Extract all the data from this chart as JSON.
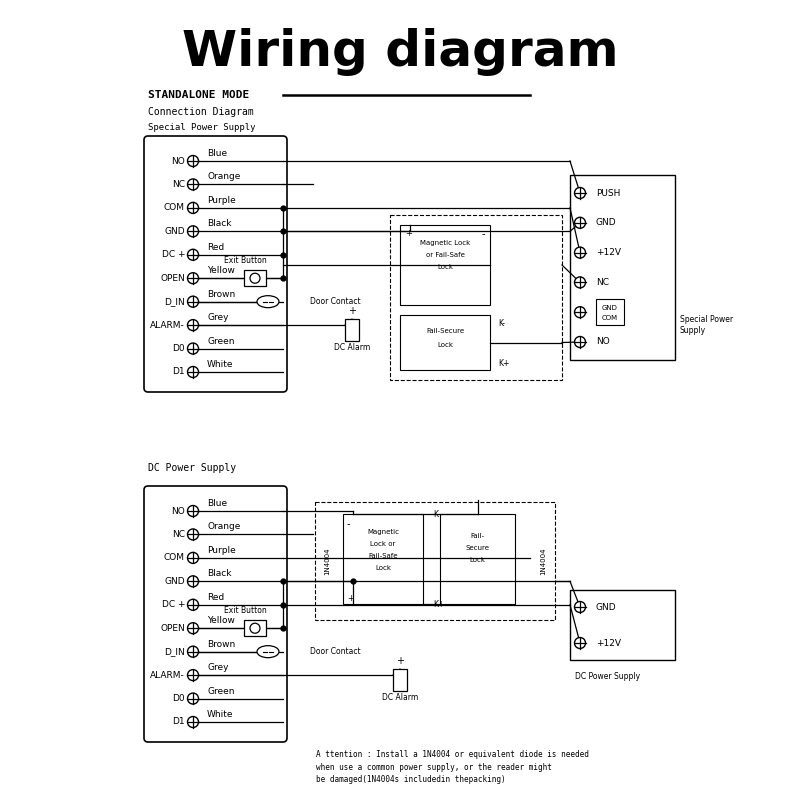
{
  "title": "Wiring diagram",
  "title_fontsize": 36,
  "bg_color": "#ffffff",
  "line_color": "#000000",
  "section1_label": "STANDALONE MODE",
  "section1_sub1": "Connection Diagram",
  "section1_sub2": "Special Power Supply",
  "section2_label": "DC Power Supply",
  "left_pins": [
    "NO",
    "NC",
    "COM",
    "GND",
    "DC +",
    "OPEN",
    "D_IN",
    "ALARM-",
    "D0",
    "D1"
  ],
  "left_wires": [
    "Blue",
    "Orange",
    "Purple",
    "Black",
    "Red",
    "Yellow",
    "Brown",
    "Grey",
    "Green",
    "White"
  ],
  "right_pins_top": [
    "PUSH",
    "GND",
    "+12V",
    "NC",
    "GND\nCOM",
    "NO"
  ],
  "right_pins_bot": [
    "GND",
    "+12V"
  ],
  "attention_text": "A ttention : Install a 1N4004 or equivalent diode is needed\nwhen use a common power supply, or the reader might\nbe damaged(1N4004s includedin thepacking)"
}
